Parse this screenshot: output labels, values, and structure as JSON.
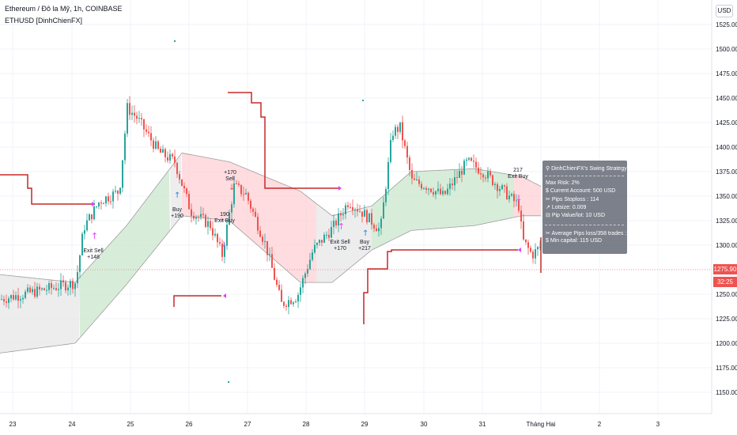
{
  "legend": {
    "title": "Ethereum / Đô la Mỹ, 1h, COINBASE",
    "indicator": "ETHUSD [DinhChienFX]"
  },
  "currency_button": "USD",
  "price_axis": {
    "labels": [
      "1525.00",
      "1500.00",
      "1475.00",
      "1450.00",
      "1425.00",
      "1400.00",
      "1375.00",
      "1350.00",
      "1325.00",
      "1300.00",
      "1250.00",
      "1225.00",
      "1200.00",
      "1175.00",
      "1150.00"
    ],
    "current_price": "1275.90",
    "countdown": "32:25"
  },
  "time_axis": {
    "labels": [
      "23",
      "24",
      "25",
      "26",
      "27",
      "28",
      "29",
      "30",
      "31",
      "Tháng Hai",
      "2",
      "3"
    ]
  },
  "annotations": {
    "exit_sell_1": "Exit Sell",
    "exit_sell_1_val": "+148",
    "buy_1": "Buy",
    "buy_1_val": "+190",
    "sell_1": "Sell",
    "sell_1_val": "+170",
    "exit_buy_1": "Exit Buy",
    "exit_buy_1_val": "190",
    "exit_sell_2": "Exit Sell",
    "exit_sell_2_val": "+170",
    "buy_2": "Buy",
    "buy_2_val": "+217",
    "exit_buy_2": "Exit Buy",
    "exit_buy_2_val": "217"
  },
  "info_panel": {
    "title": "DinhChienFX's Swing Strategy",
    "max_risk": "Max Risk: 2%",
    "current_account": "$ Current Account: 500 USD",
    "pips_stoploss": "Pips Stoploss : 114",
    "lotsize": "Lotsize: 0.009",
    "pip_value": "Pip Value/lot: 10 USD",
    "average_pips": "Average Pips loss/358 trades : 23",
    "min_capital": "$ Min capital: 115 USD"
  },
  "colors": {
    "bull": "#26a69a",
    "bear": "#ef5350",
    "stop_line": "#c62828",
    "marker": "#e040fb",
    "band_green": "#c8e6c9",
    "band_red": "#ffcdd2"
  }
}
